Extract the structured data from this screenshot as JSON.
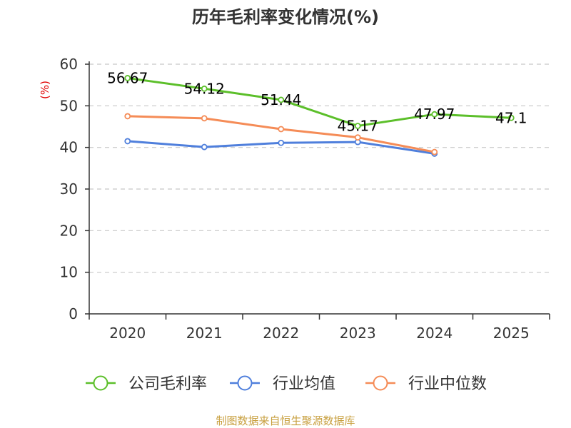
{
  "chart_data": {
    "type": "line",
    "title": "历年毛利率变化情况(%)",
    "ylabel": "(%)",
    "xlabel": "",
    "ylim": [
      0,
      60
    ],
    "yticks": [
      0,
      10,
      20,
      30,
      40,
      50,
      60
    ],
    "categories": [
      "2020",
      "2021",
      "2022",
      "2023",
      "2024",
      "2025"
    ],
    "grid": "horizontal dashed",
    "legend_position": "bottom",
    "series": [
      {
        "name": "公司毛利率",
        "color": "#5cbf2a",
        "values": [
          56.67,
          54.12,
          51.44,
          45.17,
          47.97,
          47.1
        ],
        "labels": [
          "56.67",
          "54.12",
          "51.44",
          "45.17",
          "47.97",
          "47.1"
        ]
      },
      {
        "name": "行业均值",
        "color": "#4f7fdc",
        "values": [
          41.5,
          40.1,
          41.1,
          41.3,
          38.5,
          null
        ]
      },
      {
        "name": "行业中位数",
        "color": "#f58c57",
        "values": [
          47.5,
          47.0,
          44.4,
          42.4,
          38.9,
          null
        ]
      }
    ],
    "source": "制图数据来自恒生聚源数据库"
  }
}
